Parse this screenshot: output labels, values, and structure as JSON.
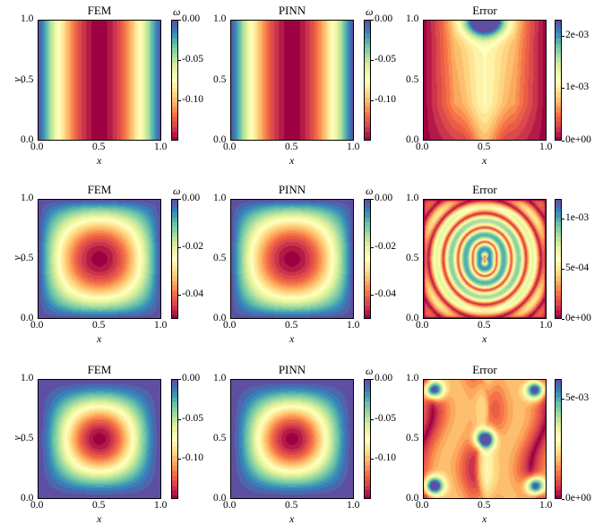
{
  "colormap": "Spectral",
  "chart_data": [
    {
      "type": "heatmap",
      "title": "FEM",
      "xlabel": "x",
      "ylabel": "y",
      "xlim": [
        0,
        1
      ],
      "ylim": [
        0,
        1
      ],
      "x_ticks": [
        "0.0",
        "0.5",
        "1.0"
      ],
      "y_ticks": [
        "0.0",
        "0.5",
        "1.0"
      ],
      "colorbar": {
        "label": "ω",
        "ticks": [
          "0.00",
          "-0.05",
          "-0.10"
        ],
        "range": [
          -0.15,
          0.0
        ]
      },
      "field": "sin_x"
    },
    {
      "type": "heatmap",
      "title": "PINN",
      "xlabel": "x",
      "ylabel": "",
      "xlim": [
        0,
        1
      ],
      "ylim": [
        0,
        1
      ],
      "x_ticks": [
        "0.0",
        "0.5",
        "1.0"
      ],
      "y_ticks": [
        "0.0",
        "0.5",
        "1.0"
      ],
      "colorbar": {
        "label": "ω",
        "ticks": [
          "0.00",
          "-0.05",
          "-0.10"
        ],
        "range": [
          -0.15,
          0.0
        ]
      },
      "field": "sin_x"
    },
    {
      "type": "heatmap",
      "title": "Error",
      "xlabel": "x",
      "ylabel": "",
      "xlim": [
        0,
        1
      ],
      "ylim": [
        0,
        1
      ],
      "x_ticks": [
        "0.0",
        "0.5",
        "1.0"
      ],
      "y_ticks": [
        "0.0",
        "0.5",
        "1.0"
      ],
      "colorbar": {
        "label": "",
        "ticks": [
          "2e-03",
          "1e-03",
          "0e+00"
        ],
        "range": [
          0,
          0.0023
        ]
      },
      "field": "err1"
    },
    {
      "type": "heatmap",
      "title": "FEM",
      "xlabel": "x",
      "ylabel": "y",
      "xlim": [
        0,
        1
      ],
      "ylim": [
        0,
        1
      ],
      "x_ticks": [
        "0.0",
        "0.5",
        "1.0"
      ],
      "y_ticks": [
        "0.0",
        "0.5",
        "1.0"
      ],
      "colorbar": {
        "label": "ω",
        "ticks": [
          "0.00",
          "-0.02",
          "-0.04"
        ],
        "range": [
          -0.05,
          0.0
        ]
      },
      "field": "bump"
    },
    {
      "type": "heatmap",
      "title": "PINN",
      "xlabel": "x",
      "ylabel": "",
      "xlim": [
        0,
        1
      ],
      "ylim": [
        0,
        1
      ],
      "x_ticks": [
        "0.0",
        "0.5",
        "1.0"
      ],
      "y_ticks": [
        "0.0",
        "0.5",
        "1.0"
      ],
      "colorbar": {
        "label": "ω",
        "ticks": [
          "0.00",
          "-0.02",
          "-0.04"
        ],
        "range": [
          -0.05,
          0.0
        ]
      },
      "field": "bump"
    },
    {
      "type": "heatmap",
      "title": "Error",
      "xlabel": "x",
      "ylabel": "",
      "xlim": [
        0,
        1
      ],
      "ylim": [
        0,
        1
      ],
      "x_ticks": [
        "0.0",
        "0.5",
        "1.0"
      ],
      "y_ticks": [
        "0.0",
        "0.5",
        "1.0"
      ],
      "colorbar": {
        "label": "",
        "ticks": [
          "1e-03",
          "5e-04",
          "0e+00"
        ],
        "range": [
          0,
          0.0012
        ]
      },
      "field": "err2"
    },
    {
      "type": "heatmap",
      "title": "FEM",
      "xlabel": "x",
      "ylabel": "y",
      "xlim": [
        0,
        1
      ],
      "ylim": [
        0,
        1
      ],
      "x_ticks": [
        "0.0",
        "0.5",
        "1.0"
      ],
      "y_ticks": [
        "0.0",
        "0.5",
        "1.0"
      ],
      "colorbar": {
        "label": "",
        "ticks": [
          "0.00",
          "-0.05",
          "-0.10"
        ],
        "range": [
          -0.15,
          0.0
        ]
      },
      "field": "bump2"
    },
    {
      "type": "heatmap",
      "title": "PINN",
      "xlabel": "x",
      "ylabel": "",
      "xlim": [
        0,
        1
      ],
      "ylim": [
        0,
        1
      ],
      "x_ticks": [
        "0.0",
        "0.5",
        "1.0"
      ],
      "y_ticks": [
        "0.0",
        "0.5",
        "1.0"
      ],
      "colorbar": {
        "label": "ω",
        "ticks": [
          "0.00",
          "-0.05",
          "-0.10"
        ],
        "range": [
          -0.15,
          0.0
        ]
      },
      "field": "bump2"
    },
    {
      "type": "heatmap",
      "title": "Error",
      "xlabel": "x",
      "ylabel": "",
      "xlim": [
        0,
        1
      ],
      "ylim": [
        0,
        1
      ],
      "x_ticks": [
        "0.0",
        "0.5",
        "1.0"
      ],
      "y_ticks": [
        "0.0",
        "0.5",
        "1.0"
      ],
      "colorbar": {
        "label": "",
        "ticks": [
          "5e-03",
          "0e+00"
        ],
        "range": [
          0,
          0.006
        ]
      },
      "field": "err3"
    }
  ]
}
